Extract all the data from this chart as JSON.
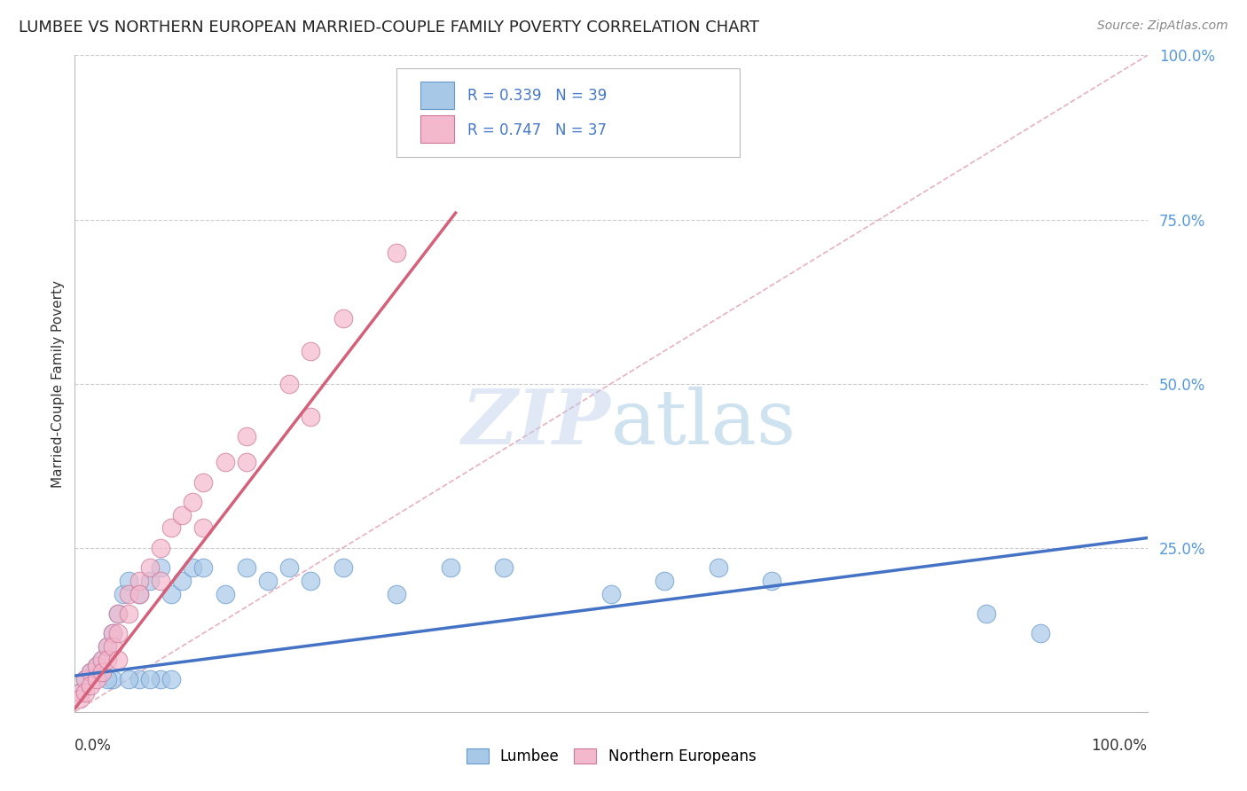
{
  "title": "LUMBEE VS NORTHERN EUROPEAN MARRIED-COUPLE FAMILY POVERTY CORRELATION CHART",
  "source": "Source: ZipAtlas.com",
  "ylabel": "Married-Couple Family Poverty",
  "xlim": [
    0.0,
    1.0
  ],
  "ylim": [
    0.0,
    1.0
  ],
  "lumbee_color": "#a8c8e8",
  "lumbee_edge_color": "#6699cc",
  "northern_color": "#f4b8cc",
  "northern_edge_color": "#cc7799",
  "lumbee_line_color": "#4472c4",
  "northern_line_color": "#d4607a",
  "diagonal_color": "#e8b0c0",
  "grid_color": "#cccccc",
  "background_color": "#ffffff",
  "watermark_color": "#ccddf0",
  "lumbee_x": [
    0.005,
    0.01,
    0.015,
    0.02,
    0.025,
    0.03,
    0.035,
    0.04,
    0.045,
    0.05,
    0.06,
    0.07,
    0.08,
    0.09,
    0.1,
    0.11,
    0.12,
    0.14,
    0.16,
    0.18,
    0.2,
    0.22,
    0.25,
    0.3,
    0.35,
    0.4,
    0.5,
    0.55,
    0.6,
    0.65,
    0.035,
    0.06,
    0.08,
    0.03,
    0.05,
    0.07,
    0.09,
    0.85,
    0.9
  ],
  "lumbee_y": [
    0.03,
    0.05,
    0.06,
    0.07,
    0.08,
    0.1,
    0.12,
    0.15,
    0.18,
    0.2,
    0.18,
    0.2,
    0.22,
    0.18,
    0.2,
    0.22,
    0.22,
    0.18,
    0.22,
    0.2,
    0.22,
    0.2,
    0.22,
    0.18,
    0.22,
    0.22,
    0.18,
    0.2,
    0.22,
    0.2,
    0.05,
    0.05,
    0.05,
    0.05,
    0.05,
    0.05,
    0.05,
    0.15,
    0.12
  ],
  "northern_x": [
    0.005,
    0.01,
    0.015,
    0.02,
    0.025,
    0.03,
    0.035,
    0.04,
    0.05,
    0.06,
    0.07,
    0.08,
    0.09,
    0.1,
    0.11,
    0.12,
    0.14,
    0.16,
    0.2,
    0.22,
    0.005,
    0.01,
    0.015,
    0.02,
    0.025,
    0.03,
    0.035,
    0.04,
    0.05,
    0.06,
    0.25,
    0.3,
    0.22,
    0.12,
    0.08,
    0.04,
    0.16
  ],
  "northern_y": [
    0.03,
    0.05,
    0.06,
    0.07,
    0.08,
    0.1,
    0.12,
    0.15,
    0.18,
    0.2,
    0.22,
    0.25,
    0.28,
    0.3,
    0.32,
    0.35,
    0.38,
    0.42,
    0.5,
    0.55,
    0.02,
    0.03,
    0.04,
    0.05,
    0.06,
    0.08,
    0.1,
    0.12,
    0.15,
    0.18,
    0.6,
    0.7,
    0.45,
    0.28,
    0.2,
    0.08,
    0.38
  ],
  "lumbee_line_x": [
    0.0,
    1.0
  ],
  "lumbee_line_y": [
    0.055,
    0.265
  ],
  "northern_line_x": [
    0.0,
    0.355
  ],
  "northern_line_y": [
    0.005,
    0.76
  ]
}
